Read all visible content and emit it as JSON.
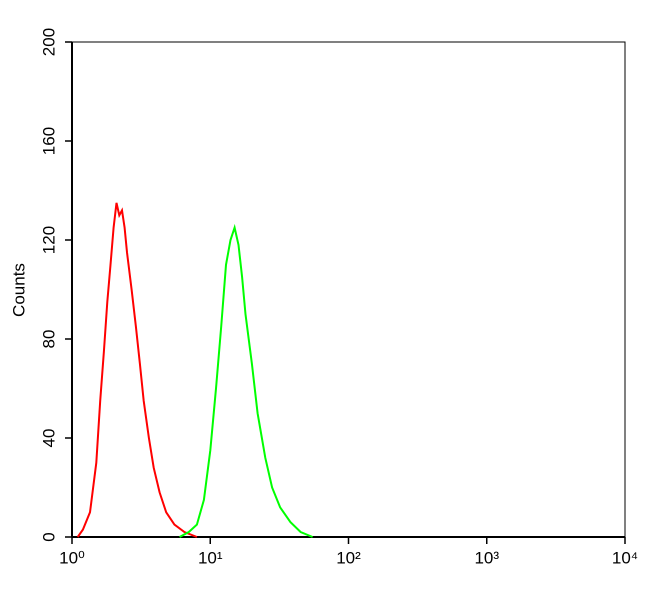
{
  "chart_data": {
    "type": "line",
    "ylabel": "Counts",
    "xscale": "log",
    "xlim": [
      1,
      10000
    ],
    "xticks": [
      {
        "value": 1,
        "label": "10⁰"
      },
      {
        "value": 10,
        "label": "10¹"
      },
      {
        "value": 100,
        "label": "10²"
      },
      {
        "value": 1000,
        "label": "10³"
      },
      {
        "value": 10000,
        "label": "10⁴"
      }
    ],
    "ylim": [
      0,
      200
    ],
    "yticks": [
      0,
      40,
      80,
      120,
      160,
      200
    ],
    "series": [
      {
        "color": "#ff0000",
        "x": [
          1.1,
          1.2,
          1.35,
          1.5,
          1.6,
          1.7,
          1.8,
          1.9,
          2.0,
          2.1,
          2.2,
          2.3,
          2.4,
          2.5,
          2.7,
          2.9,
          3.1,
          3.3,
          3.6,
          3.9,
          4.3,
          4.8,
          5.5,
          6.5,
          8
        ],
        "values": [
          0,
          3,
          10,
          30,
          55,
          75,
          95,
          110,
          125,
          135,
          130,
          132,
          125,
          115,
          100,
          85,
          70,
          55,
          40,
          28,
          18,
          10,
          5,
          2,
          0
        ]
      },
      {
        "color": "#00ff00",
        "x": [
          6,
          7,
          8,
          9,
          10,
          11,
          12,
          13,
          14,
          15,
          16,
          17,
          18,
          20,
          22,
          25,
          28,
          32,
          38,
          45,
          55
        ],
        "values": [
          0,
          2,
          5,
          15,
          35,
          60,
          85,
          110,
          120,
          125,
          118,
          105,
          90,
          70,
          50,
          32,
          20,
          12,
          6,
          2,
          0
        ]
      }
    ]
  }
}
